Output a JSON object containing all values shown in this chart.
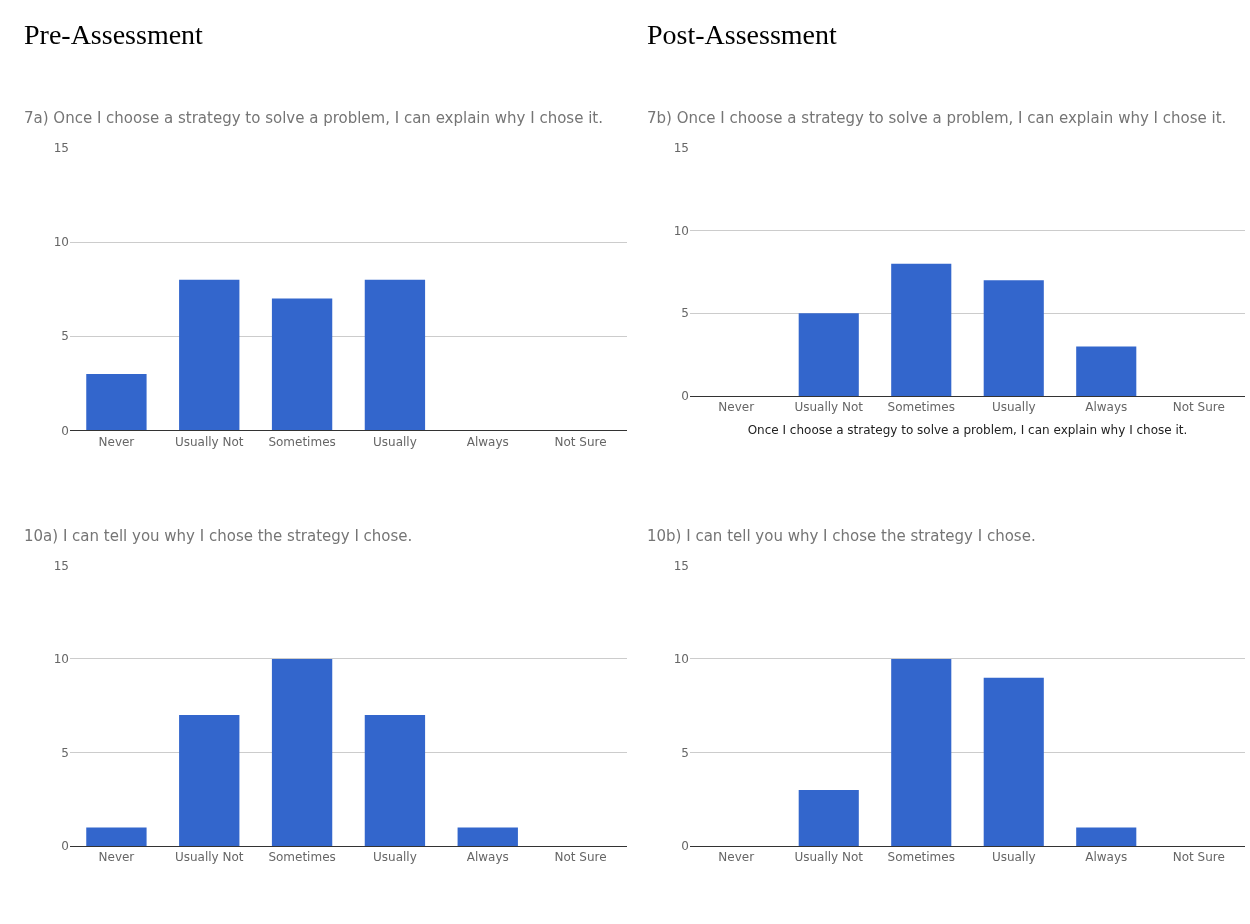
{
  "chart_data": [
    {
      "type": "bar",
      "title": "7a) Once I choose a strategy to solve a problem, I can explain why I chose it.",
      "annotations": [
        "Pre-Assessment"
      ],
      "categories": [
        "Never",
        "Usually Not",
        "Sometimes",
        "Usually",
        "Always",
        "Not Sure"
      ],
      "values": [
        3,
        8,
        7,
        8,
        0,
        0
      ],
      "color": "#3366cc",
      "ylim": [
        0,
        15
      ],
      "yticks": [
        0,
        5,
        10,
        15
      ],
      "grid": "y"
    },
    {
      "type": "bar",
      "title": "7b) Once I choose a strategy to solve a problem, I can explain why I chose it.",
      "annotations": [
        "Post-Assessment"
      ],
      "xlabel": "Once I choose a strategy to solve a problem, I can explain why I chose it.",
      "categories": [
        "Never",
        "Usually Not",
        "Sometimes",
        "Usually",
        "Always",
        "Not Sure"
      ],
      "values": [
        0,
        5,
        8,
        7,
        3,
        0
      ],
      "color": "#3366cc",
      "ylim": [
        0,
        15
      ],
      "yticks": [
        0,
        5,
        10,
        15
      ],
      "grid": "y"
    },
    {
      "type": "bar",
      "title": "10a) I can tell you why I chose the strategy I chose.",
      "categories": [
        "Never",
        "Usually Not",
        "Sometimes",
        "Usually",
        "Always",
        "Not Sure"
      ],
      "values": [
        1,
        7,
        10,
        7,
        1,
        0
      ],
      "color": "#3366cc",
      "ylim": [
        0,
        15
      ],
      "yticks": [
        0,
        5,
        10,
        15
      ],
      "grid": "y"
    },
    {
      "type": "bar",
      "title": "10b) I can tell you why I chose the strategy I chose.",
      "categories": [
        "Never",
        "Usually Not",
        "Sometimes",
        "Usually",
        "Always",
        "Not Sure"
      ],
      "values": [
        0,
        3,
        10,
        9,
        1,
        0
      ],
      "color": "#3366cc",
      "ylim": [
        0,
        15
      ],
      "yticks": [
        0,
        5,
        10,
        15
      ],
      "grid": "y"
    }
  ]
}
